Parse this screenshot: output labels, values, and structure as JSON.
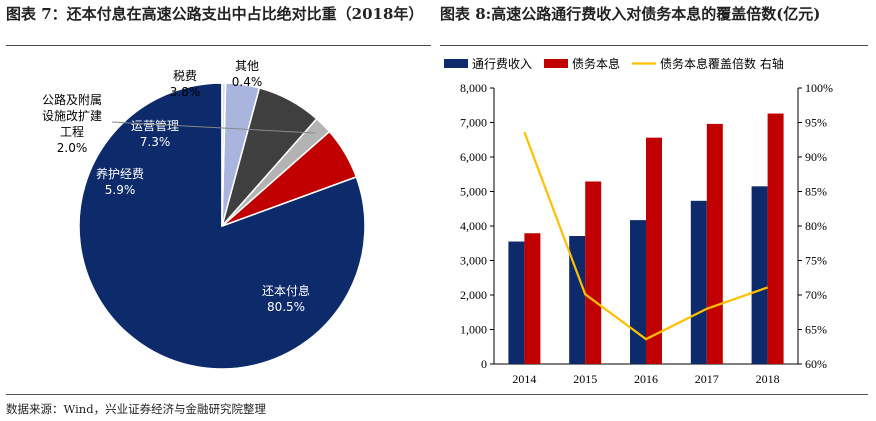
{
  "left_figure": {
    "title": "图表 7：还本付息在高速公路支出中占比绝对比重（2018年）"
  },
  "right_figure": {
    "title": "图表 8:高速公路通行费收入对债务本息的覆盖倍数(亿元)"
  },
  "source_note": "数据来源：Wind，兴业证券经济与金融研究院整理",
  "chart_data": [
    {
      "type": "pie",
      "slices": [
        {
          "label": "还本付息",
          "value": 80.5,
          "value_text": "80.5%",
          "color": "#0d2a6b",
          "label_color": "#ffffff"
        },
        {
          "label": "养护经费",
          "value": 5.9,
          "value_text": "5.9%",
          "color": "#c00000",
          "label_color": "#ffffff"
        },
        {
          "label": "公路及附属设施改扩建工程",
          "value": 2.0,
          "value_text": "2.0%",
          "color": "#b3b3b3",
          "label_color": "#000000",
          "label_lines": [
            "公路及附属",
            "设施改扩建",
            "工程"
          ]
        },
        {
          "label": "运营管理",
          "value": 7.3,
          "value_text": "7.3%",
          "color": "#3f3f3f",
          "label_color": "#ffffff"
        },
        {
          "label": "税费",
          "value": 3.8,
          "value_text": "3.8%",
          "color": "#a9b5dd",
          "label_color": "#000000"
        },
        {
          "label": "其他",
          "value": 0.4,
          "value_text": "0.4%",
          "color": "#d9dff0",
          "label_color": "#000000"
        }
      ]
    },
    {
      "type": "bar",
      "categories": [
        "2014",
        "2015",
        "2016",
        "2017",
        "2018"
      ],
      "series": [
        {
          "name": "通行费收入",
          "kind": "bar",
          "axis": "left",
          "color": "#0d2a6b",
          "values": [
            3550,
            3710,
            4170,
            4730,
            5150
          ]
        },
        {
          "name": "债务本息",
          "kind": "bar",
          "axis": "left",
          "color": "#c00000",
          "values": [
            3790,
            5290,
            6560,
            6960,
            7260
          ]
        },
        {
          "name": "债务本息覆盖倍数 右轴",
          "kind": "line",
          "axis": "right",
          "color": "#ffc000",
          "values": [
            93.6,
            70.1,
            63.6,
            68.0,
            71.1
          ]
        }
      ],
      "ylim_left": [
        0,
        8000
      ],
      "yticks_left": [
        0,
        1000,
        2000,
        3000,
        4000,
        5000,
        6000,
        7000,
        8000
      ],
      "yticks_left_labels": [
        "0",
        "1,000",
        "2,000",
        "3,000",
        "4,000",
        "5,000",
        "6,000",
        "7,000",
        "8,000"
      ],
      "ylim_right": [
        60,
        100
      ],
      "yticks_right": [
        60,
        65,
        70,
        75,
        80,
        85,
        90,
        95,
        100
      ],
      "yticks_right_labels": [
        "60%",
        "65%",
        "70%",
        "75%",
        "80%",
        "85%",
        "90%",
        "95%",
        "100%"
      ],
      "legend_position": "top",
      "grid": false
    }
  ]
}
